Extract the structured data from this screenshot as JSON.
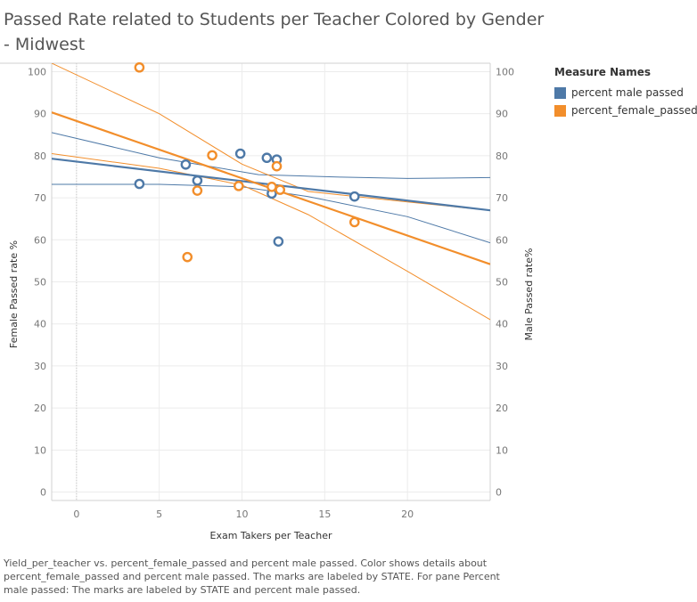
{
  "title": "Passed Rate related to Students per Teacher Colored by Gender - Midwest",
  "legend": {
    "title": "Measure Names",
    "items": [
      {
        "label": "percent male passed",
        "color": "#4e79a7"
      },
      {
        "label": "percent_female_passed",
        "color": "#f28e2b"
      }
    ]
  },
  "caption": "Yield_per_teacher vs. percent_female_passed and percent male passed.  Color shows details about percent_female_passed and percent male passed.  The marks are labeled by STATE.  For pane Percent male passed:  The marks are labeled by STATE and percent male passed.",
  "chart_data": {
    "type": "scatter",
    "xlabel": "Exam Takers per Teacher",
    "ylabel_left": "Female Passed rate %",
    "ylabel_right": "Male Passed rate%",
    "xlim": [
      -1.5,
      25
    ],
    "ylim": [
      -2,
      102
    ],
    "x_ticks": [
      0,
      5,
      10,
      15,
      20
    ],
    "y_ticks": [
      0,
      10,
      20,
      30,
      40,
      50,
      60,
      70,
      80,
      90,
      100
    ],
    "grid": true,
    "legend_position": "right",
    "series": [
      {
        "name": "percent male passed",
        "color": "#4e79a7",
        "points": [
          {
            "x": 3.8,
            "y": 73.3
          },
          {
            "x": 6.6,
            "y": 77.9
          },
          {
            "x": 7.3,
            "y": 74.1
          },
          {
            "x": 9.9,
            "y": 80.5
          },
          {
            "x": 11.5,
            "y": 79.5
          },
          {
            "x": 12.1,
            "y": 79.1
          },
          {
            "x": 11.8,
            "y": 71.0
          },
          {
            "x": 12.2,
            "y": 59.6
          },
          {
            "x": 16.8,
            "y": 70.3
          }
        ],
        "trend": {
          "x": [
            -1.5,
            25
          ],
          "y": [
            79.3,
            67.0
          ]
        },
        "band_upper": {
          "x": [
            -1.5,
            5,
            11,
            16,
            20,
            25
          ],
          "y": [
            85.5,
            79.5,
            75.5,
            74.9,
            74.6,
            74.8
          ]
        },
        "band_lower": {
          "x": [
            -1.5,
            5,
            10,
            14,
            20,
            25
          ],
          "y": [
            73.2,
            73.2,
            72.6,
            70.3,
            65.5,
            59.3
          ]
        }
      },
      {
        "name": "percent_female_passed",
        "color": "#f28e2b",
        "points": [
          {
            "x": 3.8,
            "y": 101.0
          },
          {
            "x": 6.7,
            "y": 55.9
          },
          {
            "x": 7.3,
            "y": 71.7
          },
          {
            "x": 8.2,
            "y": 80.1
          },
          {
            "x": 9.8,
            "y": 72.8
          },
          {
            "x": 11.8,
            "y": 72.6
          },
          {
            "x": 12.1,
            "y": 77.5
          },
          {
            "x": 12.3,
            "y": 71.9
          },
          {
            "x": 16.8,
            "y": 64.2
          }
        ],
        "trend": {
          "x": [
            -1.5,
            25
          ],
          "y": [
            90.3,
            54.2
          ]
        },
        "band_upper": {
          "x": [
            -1.5,
            5,
            10,
            14,
            20,
            25
          ],
          "y": [
            102.0,
            90.0,
            78.0,
            71.5,
            69.0,
            67.0
          ]
        },
        "band_lower": {
          "x": [
            -1.5,
            5,
            10,
            14,
            20,
            25
          ],
          "y": [
            80.5,
            77.0,
            73.0,
            66.0,
            52.5,
            41.0
          ]
        }
      }
    ]
  }
}
